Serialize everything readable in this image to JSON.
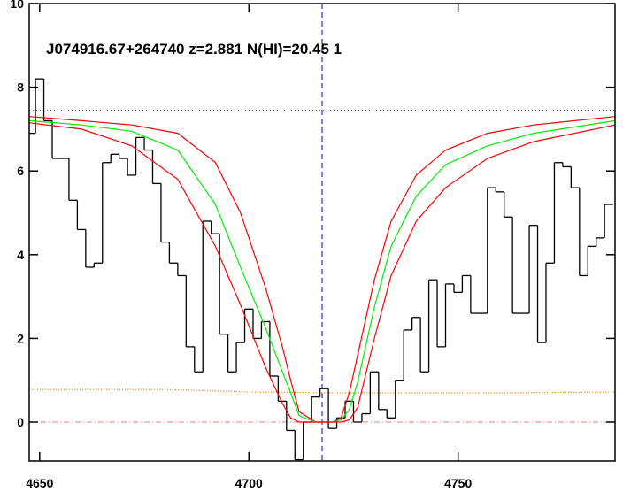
{
  "chart_data": {
    "type": "spectrum",
    "title": "J074916.67+264740 z=2.881 N(HI)=20.45 1",
    "xlim": [
      4647.5,
      4787.5
    ],
    "ylim": [
      -0.93,
      10
    ],
    "xticks": [
      4650,
      4700,
      4750
    ],
    "yticks": [
      0,
      2,
      4,
      6,
      8,
      10
    ],
    "spectrum": {
      "color": "#000000",
      "x": [
        4648,
        4650,
        4652,
        4654,
        4656,
        4658,
        4660,
        4662,
        4664,
        4666,
        4668,
        4670,
        4672,
        4674,
        4676,
        4678,
        4680,
        4682,
        4684,
        4686,
        4688,
        4690,
        4692,
        4694,
        4696,
        4698,
        4700,
        4702,
        4704,
        4706,
        4708,
        4710,
        4712,
        4714,
        4716,
        4718,
        4720,
        4722,
        4724,
        4726,
        4728,
        4730,
        4732,
        4734,
        4736,
        4738,
        4740,
        4742,
        4744,
        4746,
        4748,
        4750,
        4752,
        4754,
        4756,
        4758,
        4760,
        4762,
        4764,
        4766,
        4768,
        4770,
        4772,
        4774,
        4776,
        4778,
        4780,
        4782,
        4784,
        4786
      ],
      "values": [
        6.9,
        8.2,
        7.2,
        6.3,
        6.3,
        5.3,
        4.6,
        3.7,
        3.8,
        6.2,
        6.4,
        6.3,
        5.9,
        6.8,
        6.5,
        5.7,
        4.3,
        3.8,
        3.5,
        1.8,
        1.2,
        4.8,
        4.5,
        2.1,
        1.2,
        1.9,
        2.7,
        2.0,
        2.4,
        1.1,
        0.5,
        -0.2,
        -0.9,
        0.0,
        0.6,
        0.8,
        -0.15,
        0.1,
        0.5,
        0.0,
        0.2,
        1.2,
        0.3,
        0.1,
        1.0,
        2.2,
        2.5,
        1.2,
        3.4,
        1.8,
        3.3,
        3.1,
        3.5,
        2.6,
        2.6,
        5.6,
        5.5,
        4.9,
        2.6,
        2.6,
        4.7,
        1.9,
        3.8,
        6.2,
        6.1,
        5.6,
        3.5,
        4.2,
        4.4,
        5.2
      ]
    },
    "models": [
      {
        "color": "#ff0000",
        "x": [
          4647.5,
          4660,
          4672,
          4683,
          4692,
          4698,
          4704,
          4708,
          4710,
          4712,
          4716,
          4720,
          4722,
          4724,
          4726,
          4730,
          4734,
          4740,
          4747,
          4757,
          4768,
          4787.5
        ],
        "values": [
          7.3,
          7.2,
          7.1,
          6.9,
          6.2,
          5.0,
          3.2,
          1.8,
          1.0,
          0.25,
          0,
          0,
          0.1,
          0.7,
          1.6,
          3.4,
          4.8,
          5.9,
          6.5,
          6.9,
          7.1,
          7.3
        ]
      },
      {
        "color": "#00ee00",
        "x": [
          4647.5,
          4660,
          4672,
          4683,
          4692,
          4698,
          4704,
          4708,
          4710,
          4712,
          4716,
          4720,
          4722,
          4724,
          4726,
          4730,
          4734,
          4740,
          4747,
          4757,
          4768,
          4787.5
        ],
        "values": [
          7.2,
          7.1,
          6.95,
          6.5,
          5.2,
          3.7,
          2.25,
          1.2,
          0.7,
          0.15,
          0,
          0,
          0.05,
          0.3,
          0.95,
          2.75,
          4.2,
          5.4,
          6.15,
          6.6,
          6.9,
          7.2
        ]
      },
      {
        "color": "#ff0000",
        "x": [
          4647.5,
          4660,
          4672,
          4683,
          4692,
          4698,
          4704,
          4708,
          4710,
          4712,
          4716,
          4720,
          4722,
          4724,
          4726,
          4730,
          4734,
          4740,
          4747,
          4757,
          4768,
          4787.5
        ],
        "values": [
          7.15,
          7.0,
          6.6,
          5.8,
          4.2,
          2.8,
          1.3,
          0.45,
          0.1,
          0,
          0,
          0,
          0,
          0.05,
          0.35,
          2.0,
          3.5,
          4.8,
          5.6,
          6.3,
          6.7,
          7.1
        ]
      }
    ],
    "error": {
      "color": "#ff8000",
      "x": [
        4647.5,
        4680,
        4700,
        4720,
        4740,
        4760,
        4787.5
      ],
      "values": [
        0.78,
        0.78,
        0.72,
        0.7,
        0.7,
        0.7,
        0.72
      ]
    },
    "hlines": [
      {
        "value": 7.45,
        "color": "#c000c0",
        "dash": "1 3"
      },
      {
        "value": 0,
        "color": "#e08080",
        "dash": "6 3 1 3"
      }
    ],
    "vline": {
      "value": 4717.5,
      "color": "#0000ff",
      "dash": "6 4"
    }
  }
}
